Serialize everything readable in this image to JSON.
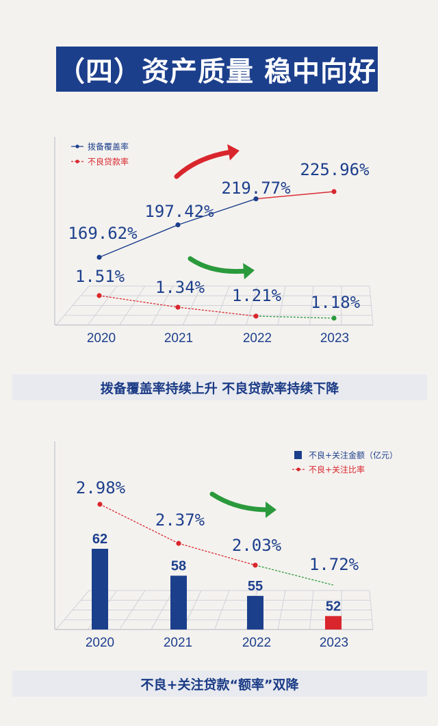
{
  "title": "（四）资产质量 稳中向好",
  "chart_data": [
    {
      "type": "line",
      "categories": [
        "2020",
        "2021",
        "2022",
        "2023"
      ],
      "series": [
        {
          "name": "拨备覆盖率",
          "values": [
            169.62,
            197.42,
            219.77,
            225.96
          ],
          "labels": [
            "169.62%",
            "197.42%",
            "219.77%",
            "225.96%"
          ],
          "color": "#1c3f8c",
          "highlight_color": "#d9262d"
        },
        {
          "name": "不良贷款率",
          "values": [
            1.51,
            1.34,
            1.21,
            1.18
          ],
          "labels": [
            "1.51%",
            "1.34%",
            "1.21%",
            "1.18%"
          ],
          "color": "#d9262d",
          "highlight_color": "#2a9a3c"
        }
      ],
      "caption": "拨备覆盖率持续上升  不良贷款率持续下降"
    },
    {
      "type": "bar",
      "categories": [
        "2020",
        "2021",
        "2022",
        "2023"
      ],
      "series": [
        {
          "name": "不良+关注金额（亿元）",
          "values": [
            62,
            58,
            55,
            52
          ],
          "labels": [
            "62",
            "58",
            "55",
            "52"
          ],
          "color": "#1c3f8c",
          "highlight_color": "#d9262d"
        },
        {
          "name": "不良+关注比率",
          "values": [
            2.98,
            2.37,
            2.03,
            1.72
          ],
          "labels": [
            "2.98%",
            "2.37%",
            "2.03%",
            "1.72%"
          ],
          "color": "#d9262d",
          "highlight_color": "#2a9a3c"
        }
      ],
      "caption": "不良+关注贷款“额率”双降"
    }
  ]
}
